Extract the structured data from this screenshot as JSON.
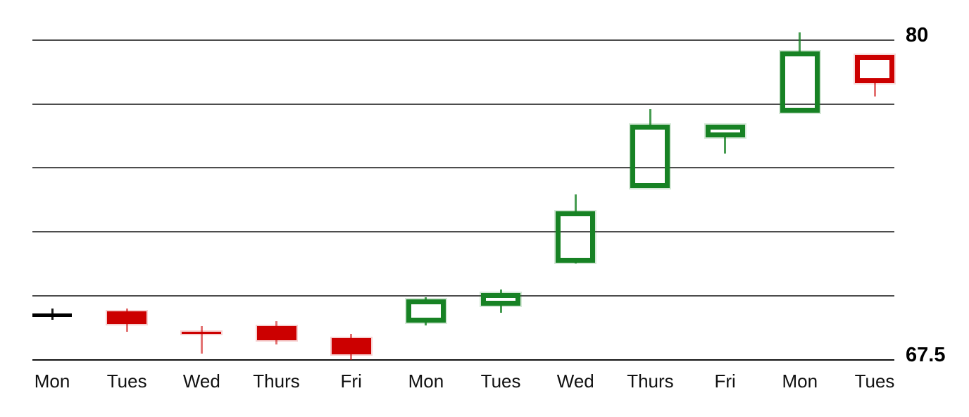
{
  "chart_data": {
    "type": "candlestick",
    "title": "",
    "x_labels": [
      "Mon",
      "Tues",
      "Wed",
      "Thurs",
      "Fri",
      "Mon",
      "Tues",
      "Wed",
      "Thurs",
      "Fri",
      "Mon",
      "Tues"
    ],
    "y_axis": {
      "labels": [
        "80",
        "67.5"
      ],
      "min": 67.5,
      "max": 80,
      "gridline_values": [
        80,
        77.5,
        75,
        72.5,
        70,
        67.5
      ]
    },
    "ylim": [
      67.5,
      80.35
    ],
    "grid": "horizontal-only",
    "legend": "none",
    "candles": [
      {
        "day": "Mon",
        "open": 69.3,
        "high": 69.5,
        "low": 69.05,
        "close": 69.17,
        "style": "black"
      },
      {
        "day": "Tues",
        "open": 69.4,
        "high": 69.5,
        "low": 68.6,
        "close": 68.9,
        "style": "red-filled"
      },
      {
        "day": "Wed",
        "open": 68.6,
        "high": 68.8,
        "low": 67.75,
        "close": 68.55,
        "style": "red-filled"
      },
      {
        "day": "Thurs",
        "open": 68.8,
        "high": 69.0,
        "low": 68.1,
        "close": 68.25,
        "style": "red-filled"
      },
      {
        "day": "Fri",
        "open": 68.35,
        "high": 68.5,
        "low": 67.5,
        "close": 67.7,
        "style": "red-filled"
      },
      {
        "day": "Mon",
        "open": 68.95,
        "high": 69.95,
        "low": 68.85,
        "close": 69.85,
        "style": "green-hollow"
      },
      {
        "day": "Tues",
        "open": 69.6,
        "high": 70.25,
        "low": 69.35,
        "close": 70.1,
        "style": "green-hollow"
      },
      {
        "day": "Wed",
        "open": 71.3,
        "high": 73.95,
        "low": 71.25,
        "close": 73.3,
        "style": "green-hollow"
      },
      {
        "day": "Thurs",
        "open": 74.2,
        "high": 77.3,
        "low": 74.2,
        "close": 76.7,
        "style": "green-hollow"
      },
      {
        "day": "Fri",
        "open": 76.2,
        "high": 76.7,
        "low": 75.55,
        "close": 76.7,
        "style": "green-hollow"
      },
      {
        "day": "Mon",
        "open": 77.15,
        "high": 80.3,
        "low": 77.15,
        "close": 79.55,
        "style": "green-hollow"
      },
      {
        "day": "Tues",
        "open": 79.4,
        "high": 79.4,
        "low": 77.8,
        "close": 78.3,
        "style": "red-hollow"
      }
    ],
    "colors": {
      "bullish": "#178224",
      "bearish": "#cc0000",
      "neutral": "#000000",
      "gridline": "#4d4d4d",
      "axis": "#111111",
      "label": "#111111"
    }
  }
}
